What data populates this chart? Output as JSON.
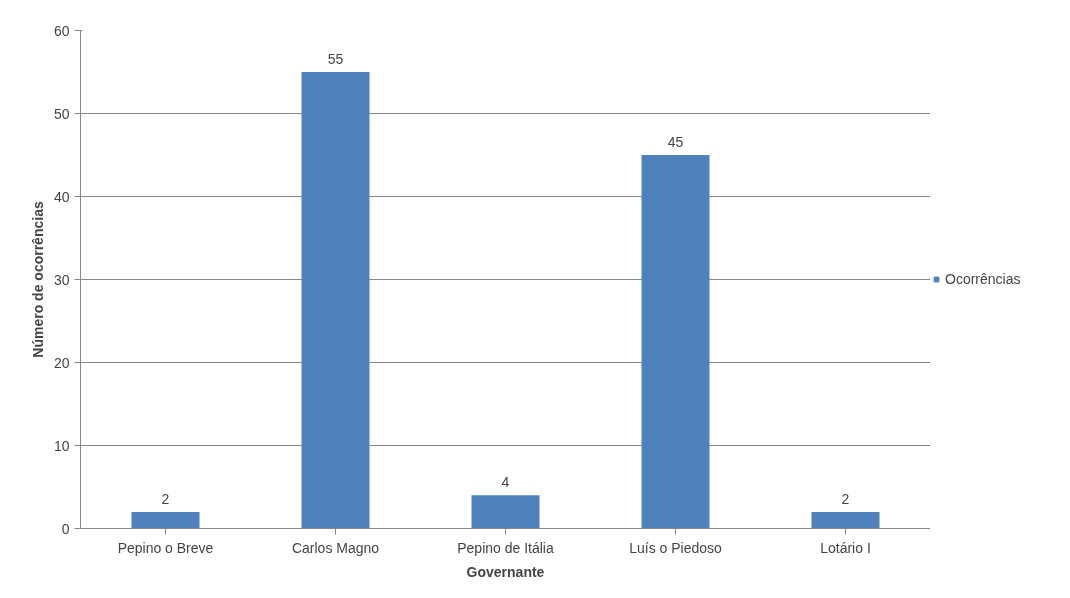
{
  "chart_data": {
    "type": "bar",
    "xlabel": "Governante",
    "ylabel": "Número de ocorrências",
    "categories": [
      "Pepino o Breve",
      "Carlos Magno",
      "Pepino de Itália",
      "Luís o Piedoso",
      "Lotário I"
    ],
    "series": [
      {
        "name": "Ocorrências",
        "color": "#4f81bd",
        "values": [
          2,
          55,
          4,
          45,
          2
        ]
      }
    ],
    "ylim": [
      0,
      60
    ],
    "yticks": [
      0,
      10,
      20,
      30,
      40,
      50,
      60
    ],
    "grid": "y",
    "legend": "right",
    "data_labels": true
  }
}
